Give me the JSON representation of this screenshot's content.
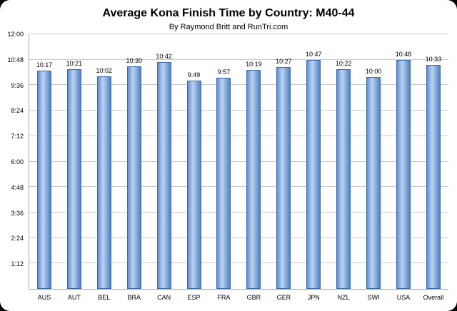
{
  "chart_data": {
    "type": "bar",
    "title": "Average Kona Finish Time by Country: M40-44",
    "subtitle": "By Raymond Britt and RunTri.com",
    "categories": [
      "AUS",
      "AUT",
      "BEL",
      "BRA",
      "CAN",
      "ESP",
      "FRA",
      "GBR",
      "GER",
      "JPN",
      "NZL",
      "SWI",
      "USA",
      "Overall"
    ],
    "values_hhmm": [
      "10:17",
      "10:21",
      "10:02",
      "10:30",
      "10:42",
      "9:49",
      "9:57",
      "10:19",
      "10:27",
      "10:47",
      "10:22",
      "10:00",
      "10:48",
      "10:33"
    ],
    "values_minutes": [
      617,
      621,
      602,
      630,
      642,
      589,
      597,
      619,
      627,
      647,
      622,
      600,
      648,
      633
    ],
    "ylim_minutes": [
      0,
      720
    ],
    "y_ticks": [
      "12:00",
      "10:48",
      "9:36",
      "8:24",
      "7:12",
      "6:00",
      "4:48",
      "3:36",
      "2:24",
      "1:12"
    ],
    "y_tick_interval_minutes": 72,
    "grid": true,
    "legend": "none"
  },
  "colors": {
    "bar_fill_light": "#bcd3f2",
    "bar_fill_dark": "#5181c3",
    "bar_border": "#3a6aa8",
    "gridline": "#c9c9c9",
    "axis_line": "#a6a6a6",
    "text": "#000000",
    "background": "#ffffff"
  }
}
